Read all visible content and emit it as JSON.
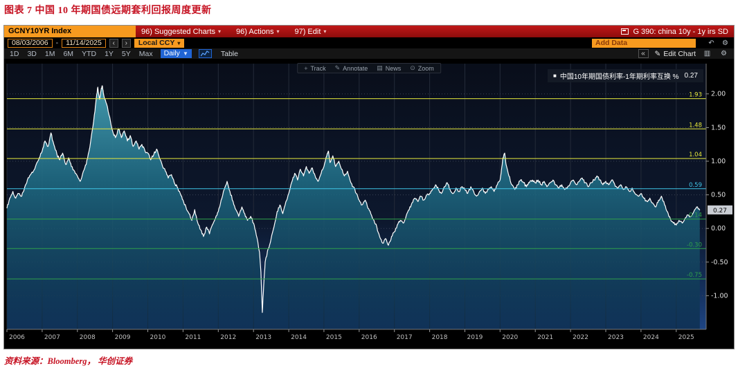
{
  "figure": {
    "title": "图表 7  中国 10 年期国债远期套利回报周度更新",
    "source": "资料来源：Bloomberg， 华创证券"
  },
  "terminal": {
    "ticker": "GCNY10YR Index",
    "menus": [
      "96) Suggested Charts",
      "96) Actions",
      "97) Edit"
    ],
    "window_title": "G 390: china 10y - 1y irs SD",
    "date_from": "08/03/2006",
    "date_separator": "-",
    "date_to": "11/14/2025",
    "currency": "Local CCY",
    "add_data_placeholder": "Add Data",
    "range_tabs": [
      "1D",
      "3D",
      "1M",
      "6M",
      "YTD",
      "1Y",
      "5Y",
      "Max"
    ],
    "frequency": "Daily",
    "table_button": "Table",
    "edit_chart": "Edit Chart",
    "chart_tools": [
      "Track",
      "Annotate",
      "News",
      "Zoom"
    ],
    "legend": {
      "label": "中国10年期国债利率-1年期利率互换 %",
      "value": "0.27"
    },
    "icons": {
      "prev": "‹",
      "next": "›",
      "caret": "▾",
      "freq_caret": "▼",
      "undo": "↶",
      "gear": "⚙",
      "collapse": "«",
      "pencil": "✎",
      "bars": "▥",
      "track": "+",
      "annotate": "✎",
      "news": "▤",
      "zoom": "⊙",
      "swatch": "■"
    }
  },
  "chart_data": {
    "type": "area",
    "title": "中国10年期国债利率-1年期利率互换 %",
    "legend_position": "top-right",
    "grid": true,
    "xlabel": "",
    "ylabel": "%",
    "xlim": [
      2006,
      2025.85
    ],
    "ylim": [
      -1.5,
      2.45
    ],
    "xticks": [
      2006,
      2007,
      2008,
      2009,
      2010,
      2011,
      2012,
      2013,
      2014,
      2015,
      2016,
      2017,
      2018,
      2019,
      2020,
      2021,
      2022,
      2023,
      2024,
      2025
    ],
    "yticks": [
      2.0,
      1.5,
      1.0,
      0.5,
      0.0,
      -0.5,
      -1.0
    ],
    "last_value": 0.27,
    "last_value_label": "0.27",
    "ref_lines": [
      {
        "value": 1.93,
        "label": "1.93",
        "color": "#e8e93c"
      },
      {
        "value": 1.48,
        "label": "1.48",
        "color": "#e8e93c"
      },
      {
        "value": 1.04,
        "label": "1.04",
        "color": "#e8e93c"
      },
      {
        "value": 0.59,
        "label": "0.59",
        "color": "#3fc6e8"
      },
      {
        "value": 0.14,
        "label": "0.14",
        "color": "#2fa14b"
      },
      {
        "value": -0.3,
        "label": "-0.30",
        "color": "#2fa14b"
      },
      {
        "value": -0.75,
        "label": "-0.75",
        "color": "#2fa14b"
      }
    ],
    "colors": {
      "line": "#ffffff",
      "area_top": "#46a0b4",
      "area_mid": "#1f6d86",
      "area_bottom": "#0a2a45",
      "bg_top": "#090e1a",
      "bg_mid": "#0d182e",
      "bg_low": "#14305c",
      "bg_bottom": "#1e4584",
      "grid_v": "#242b39",
      "grid_h": "#3b4356",
      "axis": "#777777",
      "tick_label": "#e0e0e0",
      "x_label": "#c0c0c0",
      "badge_bg": "#c9cdd3"
    },
    "series": [
      {
        "name": "中国10年期国债利率-1年期利率互换 %",
        "points": [
          [
            2006.0,
            0.3
          ],
          [
            2006.08,
            0.45
          ],
          [
            2006.17,
            0.55
          ],
          [
            2006.25,
            0.45
          ],
          [
            2006.33,
            0.52
          ],
          [
            2006.42,
            0.48
          ],
          [
            2006.5,
            0.6
          ],
          [
            2006.58,
            0.72
          ],
          [
            2006.67,
            0.8
          ],
          [
            2006.75,
            0.85
          ],
          [
            2006.83,
            0.95
          ],
          [
            2006.92,
            1.05
          ],
          [
            2007.0,
            1.15
          ],
          [
            2007.08,
            1.3
          ],
          [
            2007.17,
            1.22
          ],
          [
            2007.25,
            1.42
          ],
          [
            2007.33,
            1.25
          ],
          [
            2007.42,
            1.1
          ],
          [
            2007.5,
            1.02
          ],
          [
            2007.58,
            1.12
          ],
          [
            2007.67,
            0.95
          ],
          [
            2007.75,
            1.05
          ],
          [
            2007.83,
            0.92
          ],
          [
            2007.92,
            0.85
          ],
          [
            2008.0,
            0.78
          ],
          [
            2008.08,
            0.7
          ],
          [
            2008.17,
            0.85
          ],
          [
            2008.25,
            0.95
          ],
          [
            2008.33,
            1.15
          ],
          [
            2008.42,
            1.45
          ],
          [
            2008.5,
            1.75
          ],
          [
            2008.54,
            1.95
          ],
          [
            2008.58,
            2.1
          ],
          [
            2008.63,
            1.92
          ],
          [
            2008.67,
            2.05
          ],
          [
            2008.71,
            2.12
          ],
          [
            2008.75,
            1.98
          ],
          [
            2008.83,
            1.85
          ],
          [
            2008.92,
            1.65
          ],
          [
            2009.0,
            1.45
          ],
          [
            2009.08,
            1.35
          ],
          [
            2009.17,
            1.48
          ],
          [
            2009.25,
            1.35
          ],
          [
            2009.33,
            1.45
          ],
          [
            2009.42,
            1.3
          ],
          [
            2009.5,
            1.38
          ],
          [
            2009.58,
            1.22
          ],
          [
            2009.67,
            1.3
          ],
          [
            2009.75,
            1.18
          ],
          [
            2009.83,
            1.25
          ],
          [
            2009.92,
            1.15
          ],
          [
            2010.0,
            1.12
          ],
          [
            2010.08,
            1.02
          ],
          [
            2010.17,
            1.1
          ],
          [
            2010.25,
            1.18
          ],
          [
            2010.33,
            1.05
          ],
          [
            2010.42,
            0.92
          ],
          [
            2010.5,
            0.85
          ],
          [
            2010.58,
            0.75
          ],
          [
            2010.67,
            0.8
          ],
          [
            2010.75,
            0.68
          ],
          [
            2010.83,
            0.62
          ],
          [
            2010.92,
            0.52
          ],
          [
            2011.0,
            0.42
          ],
          [
            2011.08,
            0.32
          ],
          [
            2011.17,
            0.22
          ],
          [
            2011.25,
            0.12
          ],
          [
            2011.33,
            0.28
          ],
          [
            2011.42,
            0.08
          ],
          [
            2011.5,
            -0.02
          ],
          [
            2011.58,
            -0.12
          ],
          [
            2011.67,
            0.02
          ],
          [
            2011.75,
            -0.08
          ],
          [
            2011.83,
            0.05
          ],
          [
            2011.92,
            0.15
          ],
          [
            2012.0,
            0.25
          ],
          [
            2012.08,
            0.42
          ],
          [
            2012.17,
            0.58
          ],
          [
            2012.25,
            0.7
          ],
          [
            2012.33,
            0.55
          ],
          [
            2012.42,
            0.4
          ],
          [
            2012.5,
            0.28
          ],
          [
            2012.58,
            0.18
          ],
          [
            2012.67,
            0.32
          ],
          [
            2012.75,
            0.22
          ],
          [
            2012.83,
            0.12
          ],
          [
            2012.92,
            0.18
          ],
          [
            2013.0,
            0.08
          ],
          [
            2013.08,
            -0.1
          ],
          [
            2013.17,
            -0.35
          ],
          [
            2013.21,
            -0.65
          ],
          [
            2013.25,
            -1.25
          ],
          [
            2013.29,
            -0.85
          ],
          [
            2013.33,
            -0.5
          ],
          [
            2013.42,
            -0.3
          ],
          [
            2013.5,
            -0.15
          ],
          [
            2013.58,
            0.02
          ],
          [
            2013.67,
            0.25
          ],
          [
            2013.75,
            0.35
          ],
          [
            2013.83,
            0.22
          ],
          [
            2013.92,
            0.4
          ],
          [
            2014.0,
            0.52
          ],
          [
            2014.08,
            0.68
          ],
          [
            2014.17,
            0.82
          ],
          [
            2014.25,
            0.72
          ],
          [
            2014.33,
            0.88
          ],
          [
            2014.42,
            0.78
          ],
          [
            2014.5,
            0.92
          ],
          [
            2014.58,
            0.82
          ],
          [
            2014.67,
            0.9
          ],
          [
            2014.75,
            0.78
          ],
          [
            2014.83,
            0.7
          ],
          [
            2014.92,
            0.82
          ],
          [
            2015.0,
            0.92
          ],
          [
            2015.08,
            1.08
          ],
          [
            2015.13,
            1.15
          ],
          [
            2015.17,
            0.98
          ],
          [
            2015.25,
            1.08
          ],
          [
            2015.33,
            0.92
          ],
          [
            2015.42,
            1.0
          ],
          [
            2015.5,
            0.88
          ],
          [
            2015.58,
            0.78
          ],
          [
            2015.67,
            0.85
          ],
          [
            2015.75,
            0.7
          ],
          [
            2015.83,
            0.62
          ],
          [
            2015.92,
            0.52
          ],
          [
            2016.0,
            0.42
          ],
          [
            2016.08,
            0.35
          ],
          [
            2016.17,
            0.42
          ],
          [
            2016.25,
            0.3
          ],
          [
            2016.33,
            0.22
          ],
          [
            2016.42,
            0.12
          ],
          [
            2016.5,
            0.02
          ],
          [
            2016.58,
            -0.12
          ],
          [
            2016.67,
            -0.22
          ],
          [
            2016.75,
            -0.15
          ],
          [
            2016.83,
            -0.25
          ],
          [
            2016.92,
            -0.12
          ],
          [
            2017.0,
            -0.05
          ],
          [
            2017.08,
            0.05
          ],
          [
            2017.17,
            0.12
          ],
          [
            2017.25,
            0.08
          ],
          [
            2017.33,
            0.18
          ],
          [
            2017.42,
            0.28
          ],
          [
            2017.5,
            0.38
          ],
          [
            2017.58,
            0.45
          ],
          [
            2017.67,
            0.4
          ],
          [
            2017.75,
            0.48
          ],
          [
            2017.83,
            0.42
          ],
          [
            2017.92,
            0.5
          ],
          [
            2018.0,
            0.52
          ],
          [
            2018.08,
            0.58
          ],
          [
            2018.17,
            0.65
          ],
          [
            2018.25,
            0.58
          ],
          [
            2018.33,
            0.52
          ],
          [
            2018.42,
            0.62
          ],
          [
            2018.5,
            0.68
          ],
          [
            2018.58,
            0.58
          ],
          [
            2018.67,
            0.52
          ],
          [
            2018.75,
            0.6
          ],
          [
            2018.83,
            0.55
          ],
          [
            2018.92,
            0.62
          ],
          [
            2019.0,
            0.58
          ],
          [
            2019.08,
            0.52
          ],
          [
            2019.17,
            0.62
          ],
          [
            2019.25,
            0.55
          ],
          [
            2019.33,
            0.48
          ],
          [
            2019.42,
            0.55
          ],
          [
            2019.5,
            0.6
          ],
          [
            2019.58,
            0.52
          ],
          [
            2019.67,
            0.58
          ],
          [
            2019.75,
            0.62
          ],
          [
            2019.83,
            0.55
          ],
          [
            2019.92,
            0.65
          ],
          [
            2020.0,
            0.72
          ],
          [
            2020.04,
            0.88
          ],
          [
            2020.08,
            1.05
          ],
          [
            2020.13,
            1.12
          ],
          [
            2020.17,
            0.95
          ],
          [
            2020.25,
            0.78
          ],
          [
            2020.33,
            0.65
          ],
          [
            2020.42,
            0.58
          ],
          [
            2020.5,
            0.65
          ],
          [
            2020.58,
            0.72
          ],
          [
            2020.67,
            0.68
          ],
          [
            2020.75,
            0.62
          ],
          [
            2020.83,
            0.68
          ],
          [
            2020.92,
            0.72
          ],
          [
            2021.0,
            0.68
          ],
          [
            2021.08,
            0.72
          ],
          [
            2021.17,
            0.65
          ],
          [
            2021.25,
            0.7
          ],
          [
            2021.33,
            0.62
          ],
          [
            2021.42,
            0.68
          ],
          [
            2021.5,
            0.72
          ],
          [
            2021.58,
            0.65
          ],
          [
            2021.67,
            0.6
          ],
          [
            2021.75,
            0.65
          ],
          [
            2021.83,
            0.58
          ],
          [
            2021.92,
            0.62
          ],
          [
            2022.0,
            0.68
          ],
          [
            2022.08,
            0.72
          ],
          [
            2022.17,
            0.65
          ],
          [
            2022.25,
            0.7
          ],
          [
            2022.33,
            0.75
          ],
          [
            2022.42,
            0.68
          ],
          [
            2022.5,
            0.62
          ],
          [
            2022.58,
            0.68
          ],
          [
            2022.67,
            0.72
          ],
          [
            2022.75,
            0.78
          ],
          [
            2022.83,
            0.72
          ],
          [
            2022.92,
            0.65
          ],
          [
            2023.0,
            0.7
          ],
          [
            2023.08,
            0.65
          ],
          [
            2023.17,
            0.72
          ],
          [
            2023.25,
            0.66
          ],
          [
            2023.33,
            0.6
          ],
          [
            2023.42,
            0.65
          ],
          [
            2023.5,
            0.58
          ],
          [
            2023.58,
            0.62
          ],
          [
            2023.67,
            0.55
          ],
          [
            2023.75,
            0.6
          ],
          [
            2023.83,
            0.52
          ],
          [
            2023.92,
            0.48
          ],
          [
            2024.0,
            0.52
          ],
          [
            2024.08,
            0.45
          ],
          [
            2024.17,
            0.4
          ],
          [
            2024.25,
            0.45
          ],
          [
            2024.33,
            0.38
          ],
          [
            2024.42,
            0.32
          ],
          [
            2024.5,
            0.42
          ],
          [
            2024.58,
            0.48
          ],
          [
            2024.67,
            0.35
          ],
          [
            2024.75,
            0.25
          ],
          [
            2024.83,
            0.15
          ],
          [
            2024.92,
            0.08
          ],
          [
            2025.0,
            0.05
          ],
          [
            2025.08,
            0.12
          ],
          [
            2025.17,
            0.08
          ],
          [
            2025.25,
            0.15
          ],
          [
            2025.33,
            0.2
          ],
          [
            2025.42,
            0.18
          ],
          [
            2025.5,
            0.25
          ],
          [
            2025.58,
            0.32
          ],
          [
            2025.67,
            0.27
          ]
        ]
      }
    ]
  }
}
